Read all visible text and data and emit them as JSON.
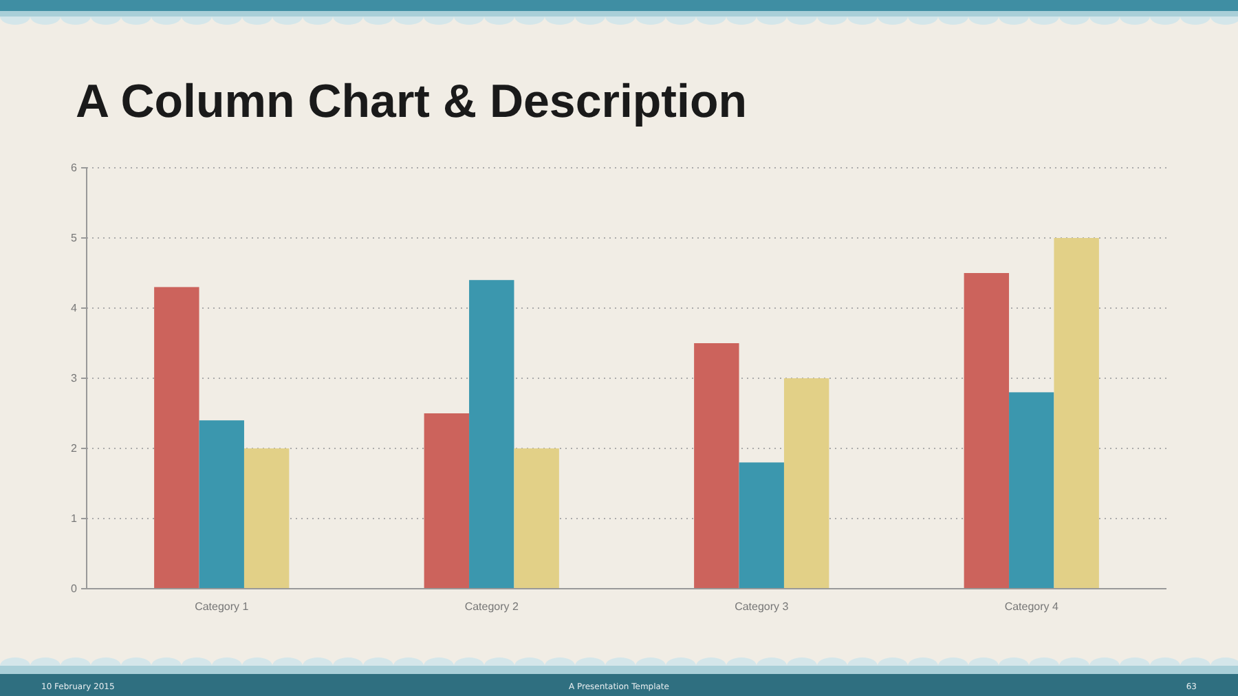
{
  "chart_data": {
    "type": "bar",
    "title": "A Column Chart & Description",
    "categories": [
      "Category 1",
      "Category 2",
      "Category 3",
      "Category 4"
    ],
    "series": [
      {
        "color": "#cc635c",
        "values": [
          4.3,
          2.5,
          3.5,
          4.5
        ]
      },
      {
        "color": "#3b97ae",
        "values": [
          2.4,
          4.4,
          1.8,
          2.8
        ]
      },
      {
        "color": "#e2d087",
        "values": [
          2,
          2,
          3,
          5
        ]
      }
    ],
    "ylim": [
      0,
      6
    ],
    "yticks": [
      0,
      1,
      2,
      3,
      4,
      5,
      6
    ],
    "grid": "y",
    "annotations": [
      "10 February 2015",
      "A Presentation Template",
      "63"
    ]
  }
}
